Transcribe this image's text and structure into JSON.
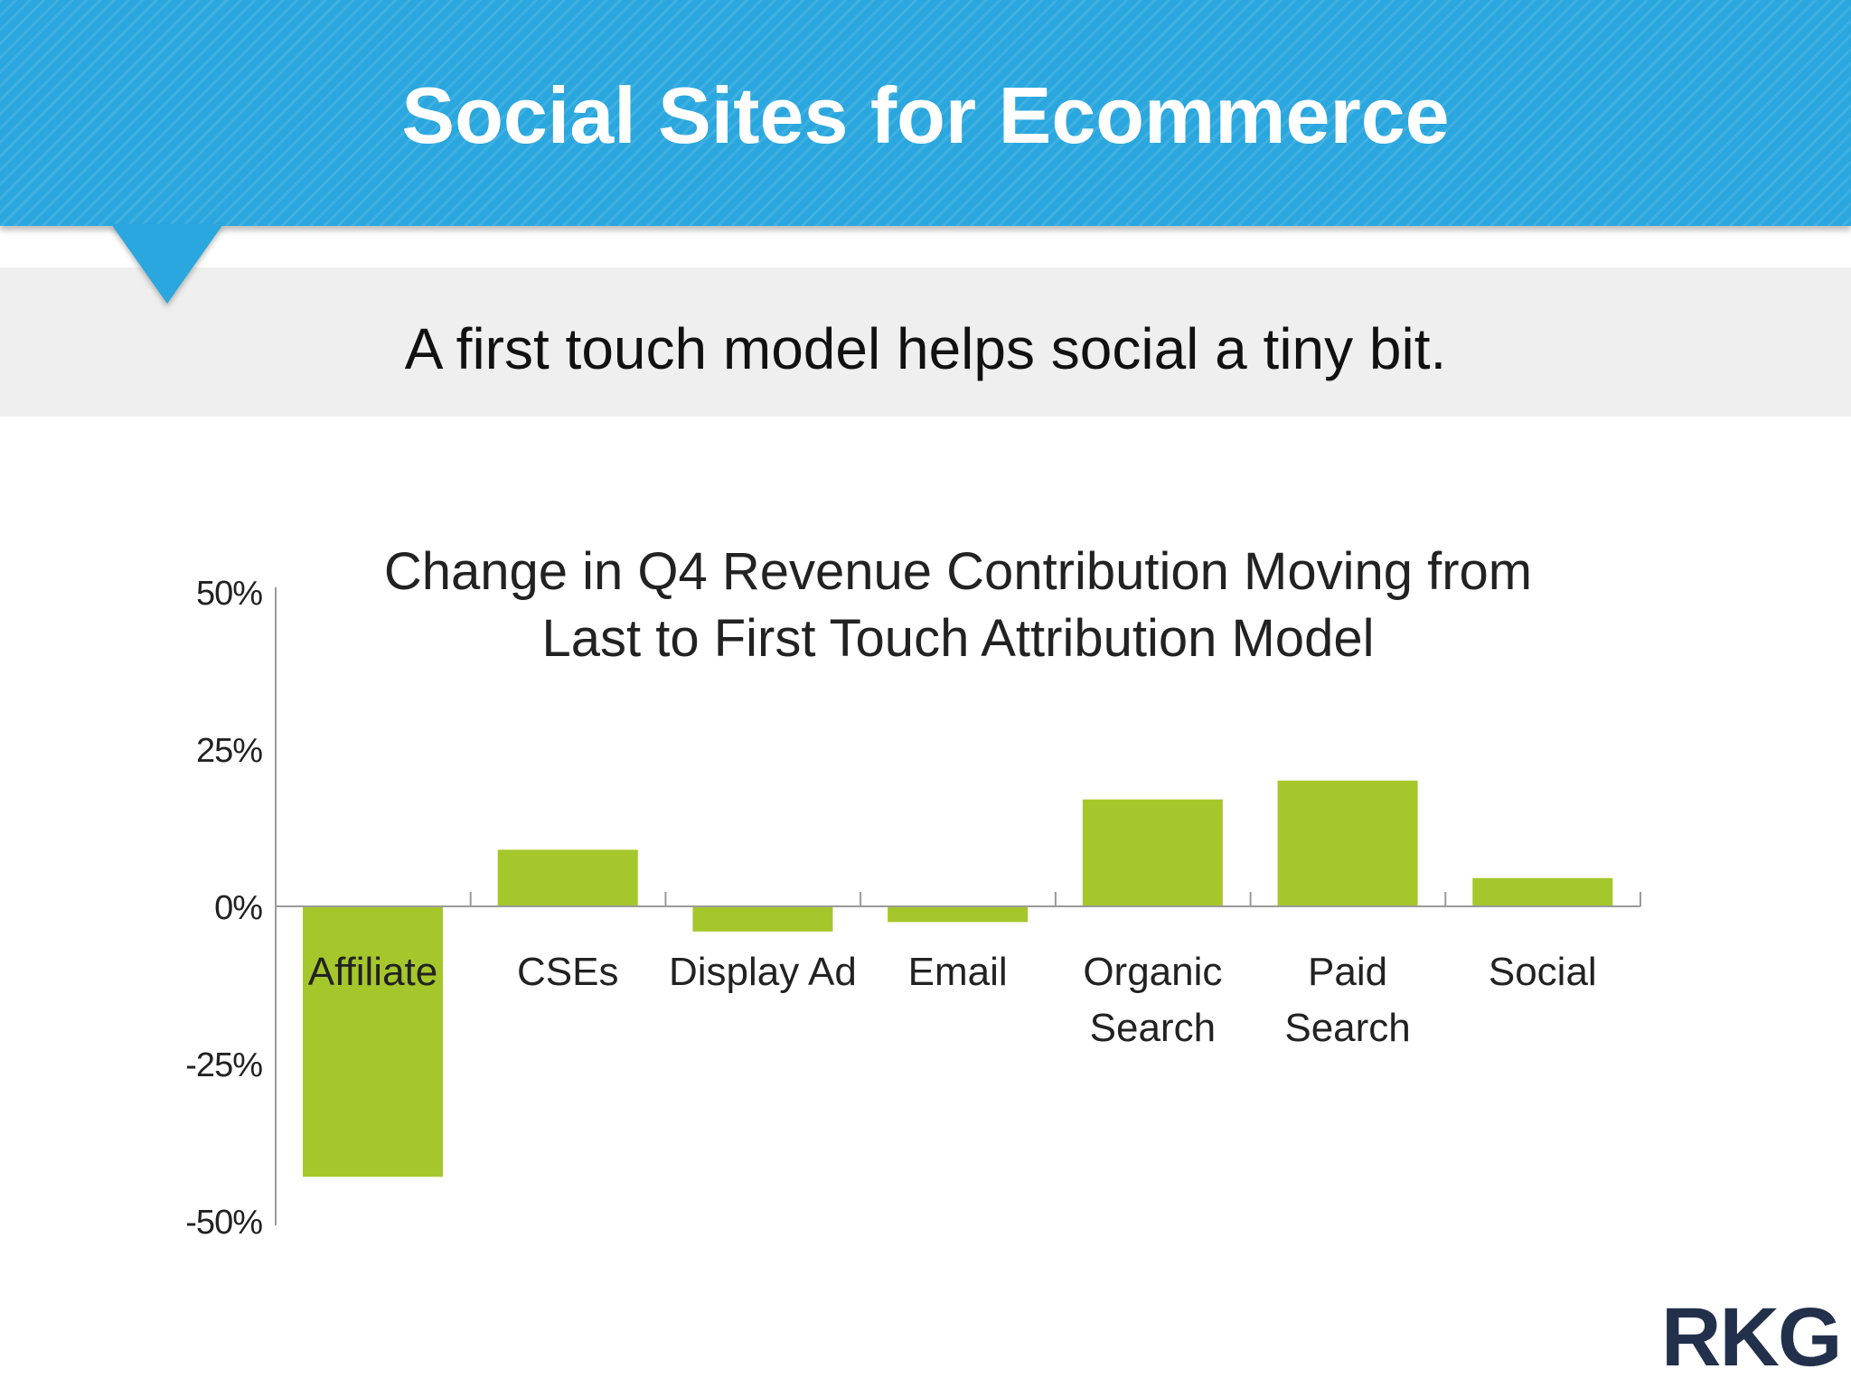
{
  "slide": {
    "title": "Social Sites for Ecommerce",
    "subtitle": "A first touch model helps social a tiny bit.",
    "logo_text": "RKG"
  },
  "colors": {
    "banner": "#2aa7de",
    "bar": "#a5c72b",
    "axis": "#9a9a9a",
    "text": "#222222"
  },
  "chart_data": {
    "type": "bar",
    "title": "Change in Q4 Revenue Contribution Moving from Last to First Touch Attribution Model",
    "title_lines": [
      "Change in Q4 Revenue Contribution Moving from",
      "Last to First Touch Attribution Model"
    ],
    "categories": [
      "Affiliate",
      "CSEs",
      "Display Ad",
      "Email",
      "Organic Search",
      "Paid Search",
      "Social"
    ],
    "category_lines": [
      [
        "Affiliate"
      ],
      [
        "CSEs"
      ],
      [
        "Display Ad"
      ],
      [
        "Email"
      ],
      [
        "Organic",
        "Search"
      ],
      [
        "Paid",
        "Search"
      ],
      [
        "Social"
      ]
    ],
    "values": [
      -43,
      9,
      -4,
      -2.5,
      17,
      20,
      4.5
    ],
    "unit": "%",
    "ylim": [
      -50,
      50
    ],
    "yticks": [
      50,
      25,
      0,
      -25,
      -50
    ],
    "ytick_labels": [
      "50%",
      "25%",
      "0%",
      "-25%",
      "-50%"
    ],
    "xlabel": "",
    "ylabel": "",
    "grid": false,
    "legend": "none"
  }
}
